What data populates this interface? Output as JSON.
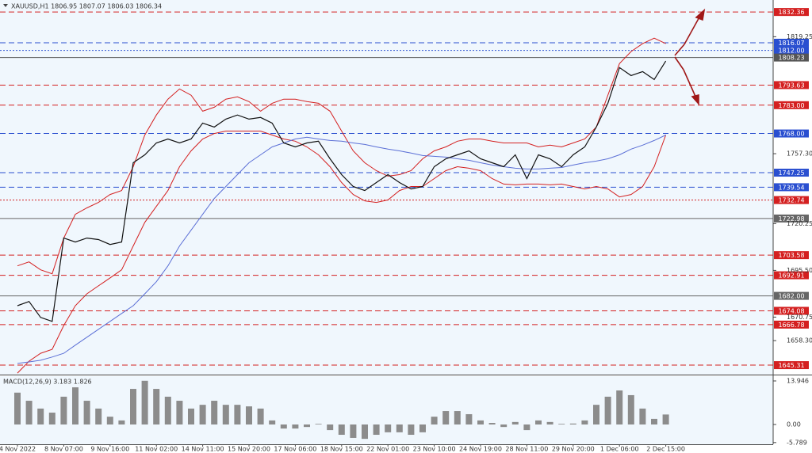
{
  "chart_data": [
    {
      "type": "line",
      "title": "XAUUSD,H1  1806.95 1807.07 1806.03 1806.34",
      "categories": [
        "4 Nov 2022",
        null,
        null,
        null,
        "8 Nov 07:00",
        null,
        null,
        null,
        "9 Nov 16:00",
        null,
        null,
        null,
        "11 Nov 02:00",
        null,
        null,
        null,
        "14 Nov 11:00",
        null,
        null,
        null,
        "15 Nov 20:00",
        null,
        null,
        null,
        "17 Nov 06:00",
        null,
        null,
        null,
        "18 Nov 15:00",
        null,
        null,
        null,
        "22 Nov 01:00",
        null,
        null,
        null,
        "23 Nov 10:00",
        null,
        null,
        null,
        "24 Nov 19:00",
        null,
        null,
        null,
        "28 Nov 11:00",
        null,
        null,
        null,
        "29 Nov 20:00",
        null,
        null,
        null,
        "1 Dec 06:00",
        null,
        null,
        null,
        "2 Dec 15:00"
      ],
      "series": [
        {
          "color": "#d42020",
          "values": [
            1697.9,
            1700.0,
            1695.8,
            1693.7,
            1712.6,
            1725.2,
            1728.6,
            1731.5,
            1735.7,
            1737.8,
            1750.4,
            1767.2,
            1777.8,
            1786.2,
            1791.6,
            1788.3,
            1779.8,
            1781.9,
            1786.2,
            1787.4,
            1784.9,
            1779.8,
            1784.0,
            1786.2,
            1786.2,
            1784.9,
            1784.0,
            1779.8,
            1769.3,
            1758.8,
            1752.5,
            1748.3,
            1745.4,
            1746.2,
            1748.3,
            1754.6,
            1758.8,
            1760.9,
            1763.9,
            1765.1,
            1765.1,
            1763.9,
            1763.0,
            1763.0,
            1763.0,
            1760.9,
            1761.8,
            1760.9,
            1763.0,
            1765.1,
            1771.4,
            1788.3,
            1805.0,
            1811.4,
            1815.6,
            1818.5,
            1815.6
          ]
        },
        {
          "color": "#d42020",
          "values": [
            1641.1,
            1647.4,
            1651.6,
            1653.7,
            1666.3,
            1676.8,
            1683.1,
            1687.3,
            1691.5,
            1695.8,
            1708.4,
            1720.9,
            1729.4,
            1737.8,
            1750.4,
            1758.8,
            1765.1,
            1768.0,
            1769.3,
            1769.3,
            1769.3,
            1769.3,
            1767.2,
            1765.1,
            1763.9,
            1760.9,
            1756.7,
            1750.4,
            1742.0,
            1735.7,
            1732.3,
            1731.5,
            1732.8,
            1737.8,
            1739.9,
            1739.9,
            1744.1,
            1748.3,
            1750.4,
            1749.6,
            1748.3,
            1744.1,
            1741.2,
            1740.8,
            1741.2,
            1741.2,
            1740.8,
            1741.2,
            1739.9,
            1738.6,
            1739.9,
            1738.6,
            1734.4,
            1735.7,
            1739.9,
            1750.4,
            1767.2
          ]
        },
        {
          "color": "#5b6fd6",
          "values": [
            1646.2,
            1647.0,
            1647.9,
            1649.6,
            1651.6,
            1655.9,
            1660.1,
            1664.3,
            1668.5,
            1672.7,
            1676.8,
            1683.1,
            1689.5,
            1697.9,
            1708.4,
            1716.8,
            1725.2,
            1733.6,
            1739.9,
            1746.2,
            1752.5,
            1756.7,
            1760.9,
            1763.0,
            1765.1,
            1766.0,
            1765.1,
            1764.3,
            1763.9,
            1763.0,
            1762.2,
            1760.9,
            1759.7,
            1758.8,
            1757.6,
            1756.3,
            1755.9,
            1755.5,
            1754.6,
            1753.8,
            1752.5,
            1751.3,
            1750.4,
            1749.6,
            1749.2,
            1749.2,
            1749.6,
            1750.0,
            1751.3,
            1752.5,
            1753.4,
            1754.6,
            1756.7,
            1759.7,
            1761.8,
            1764.3,
            1767.2
          ]
        },
        {
          "color": "#111111",
          "values": [
            1676.8,
            1679.0,
            1670.6,
            1668.5,
            1712.6,
            1710.5,
            1712.6,
            1711.8,
            1709.2,
            1710.5,
            1752.5,
            1756.7,
            1763.0,
            1765.1,
            1763.0,
            1765.1,
            1773.5,
            1771.4,
            1775.6,
            1777.8,
            1775.6,
            1776.5,
            1773.5,
            1763.0,
            1760.9,
            1763.0,
            1763.9,
            1754.6,
            1746.2,
            1739.9,
            1737.8,
            1742.0,
            1746.2,
            1742.0,
            1738.6,
            1739.9,
            1750.4,
            1754.6,
            1756.7,
            1758.8,
            1754.6,
            1752.5,
            1750.4,
            1756.7,
            1744.1,
            1756.7,
            1754.6,
            1750.4,
            1756.7,
            1760.9,
            1771.4,
            1784.0,
            1802.9,
            1798.7,
            1800.8,
            1796.6,
            1806.34
          ]
        }
      ],
      "levels": [
        {
          "value": 1832.36,
          "label": "1832.36",
          "color": "#d42020",
          "style": "dashed"
        },
        {
          "value": 1816.07,
          "label": "1816.07",
          "color": "#2a4fd0",
          "style": "dashed"
        },
        {
          "value": 1812.0,
          "label": "1812.00",
          "color": "#2a4fd0",
          "style": "dotted"
        },
        {
          "value": 1808.23,
          "label": "1808.23",
          "color": "#555555",
          "style": "solid"
        },
        {
          "value": 1793.63,
          "label": "1793.63",
          "color": "#d42020",
          "style": "dashed"
        },
        {
          "value": 1783.0,
          "label": "1783.00",
          "color": "#d42020",
          "style": "dashed"
        },
        {
          "value": 1768.0,
          "label": "1768.00",
          "color": "#2a4fd0",
          "style": "dashed"
        },
        {
          "value": 1747.25,
          "label": "1747.25",
          "color": "#2a4fd0",
          "style": "dashed"
        },
        {
          "value": 1739.54,
          "label": "1739.54",
          "color": "#2a4fd0",
          "style": "dashed"
        },
        {
          "value": 1732.74,
          "label": "1732.74",
          "color": "#d42020",
          "style": "dotted"
        },
        {
          "value": 1722.98,
          "label": "1722.98",
          "color": "#666666",
          "style": "solid"
        },
        {
          "value": 1703.58,
          "label": "1703.58",
          "color": "#d42020",
          "style": "dashed"
        },
        {
          "value": 1692.91,
          "label": "1692.91",
          "color": "#d42020",
          "style": "dashed"
        },
        {
          "value": 1682.0,
          "label": "1682.00",
          "color": "#666666",
          "style": "solid"
        },
        {
          "value": 1674.08,
          "label": "1674.08",
          "color": "#d42020",
          "style": "dashed"
        },
        {
          "value": 1666.78,
          "label": "1666.78",
          "color": "#d42020",
          "style": "dashed"
        },
        {
          "value": 1645.31,
          "label": "1645.31",
          "color": "#d42020",
          "style": "dashed"
        }
      ],
      "ylim": [
        1640.3,
        1838.7
      ],
      "yticks": [
        1819.25,
        {
          "value": 1757.3,
          "label": "1757.30"
        },
        1720.25,
        {
          "value": 1695.5,
          "label": "1695.50"
        },
        1670.75,
        {
          "value": 1658.3,
          "label": "1658.30"
        }
      ]
    },
    {
      "type": "bar",
      "title": "MACD(12,26,9) 3.183 1.826",
      "color": "#8c8c8c",
      "values": [
        10.2,
        7.6,
        5.1,
        3.8,
        8.9,
        11.9,
        7.6,
        5.1,
        2.5,
        1.3,
        11.4,
        14.0,
        11.4,
        8.9,
        7.6,
        5.1,
        6.3,
        7.6,
        6.3,
        6.3,
        5.8,
        5.1,
        1.3,
        -1.3,
        -1.3,
        -0.8,
        0.2,
        -1.8,
        -3.3,
        -4.3,
        -4.6,
        -3.3,
        -2.5,
        -2.5,
        -3.3,
        -2.5,
        2.5,
        4.3,
        4.3,
        3.3,
        1.3,
        0.5,
        -0.8,
        0.8,
        -1.8,
        1.3,
        0.8,
        0.2,
        0.3,
        1.3,
        6.3,
        8.9,
        10.9,
        9.4,
        5.1,
        1.8,
        3.2
      ],
      "ylim": [
        -6.34,
        15.47
      ],
      "yticks": [
        13.946,
        {
          "value": 0,
          "label": "0.00"
        },
        -5.789
      ]
    }
  ]
}
